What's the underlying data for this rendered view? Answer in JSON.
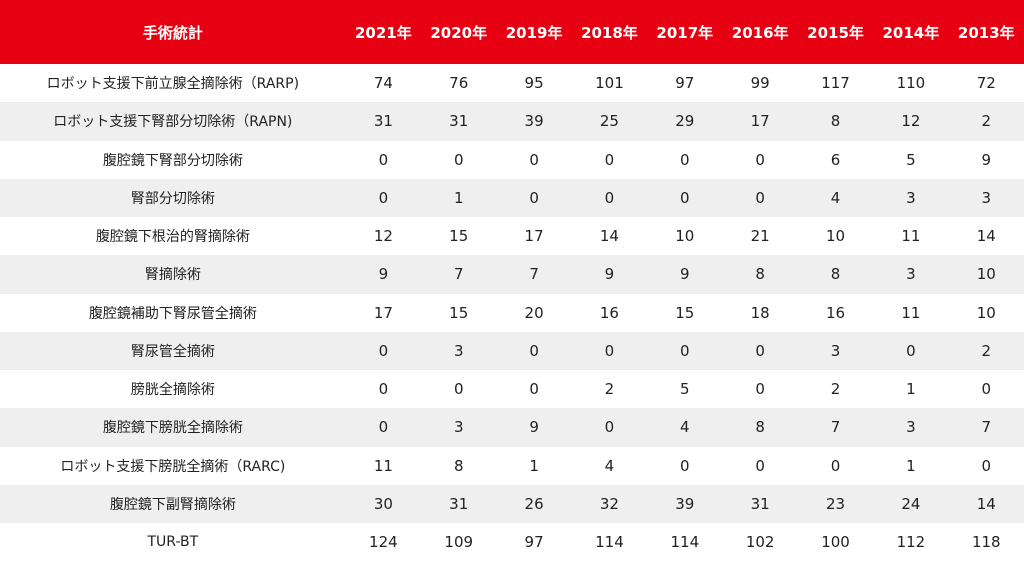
{
  "colors": {
    "header_bg": "#e60012",
    "header_text": "#ffffff",
    "stripe": "#efefef"
  },
  "table": {
    "header": [
      "手術統計",
      "2021年",
      "2020年",
      "2019年",
      "2018年",
      "2017年",
      "2016年",
      "2015年",
      "2014年",
      "2013年"
    ],
    "rows": [
      {
        "name": "ロボット支援下前立腺全摘除術（RARP)",
        "values": [
          "74",
          "76",
          "95",
          "101",
          "97",
          "99",
          "117",
          "110",
          "72"
        ]
      },
      {
        "name": "ロボット支援下腎部分切除術（RAPN)",
        "values": [
          "31",
          "31",
          "39",
          "25",
          "29",
          "17",
          "8",
          "12",
          "2"
        ]
      },
      {
        "name": "腹腔鏡下腎部分切除術",
        "values": [
          "0",
          "0",
          "0",
          "0",
          "0",
          "0",
          "6",
          "5",
          "9"
        ]
      },
      {
        "name": "腎部分切除術",
        "values": [
          "0",
          "1",
          "0",
          "0",
          "0",
          "0",
          "4",
          "3",
          "3"
        ]
      },
      {
        "name": "腹腔鏡下根治的腎摘除術",
        "values": [
          "12",
          "15",
          "17",
          "14",
          "10",
          "21",
          "10",
          "11",
          "14"
        ]
      },
      {
        "name": "腎摘除術",
        "values": [
          "9",
          "7",
          "7",
          "9",
          "9",
          "8",
          "8",
          "3",
          "10"
        ]
      },
      {
        "name": "腹腔鏡補助下腎尿管全摘術",
        "values": [
          "17",
          "15",
          "20",
          "16",
          "15",
          "18",
          "16",
          "11",
          "10"
        ]
      },
      {
        "name": "腎尿管全摘術",
        "values": [
          "0",
          "3",
          "0",
          "0",
          "0",
          "0",
          "3",
          "0",
          "2"
        ]
      },
      {
        "name": "膀胱全摘除術",
        "values": [
          "0",
          "0",
          "0",
          "2",
          "5",
          "0",
          "2",
          "1",
          "0"
        ]
      },
      {
        "name": "腹腔鏡下膀胱全摘除術",
        "values": [
          "0",
          "3",
          "9",
          "0",
          "4",
          "8",
          "7",
          "3",
          "7"
        ]
      },
      {
        "name": "ロボット支援下膀胱全摘術（RARC)",
        "values": [
          "11",
          "8",
          "1",
          "4",
          "0",
          "0",
          "0",
          "1",
          "0"
        ]
      },
      {
        "name": "腹腔鏡下副腎摘除術",
        "values": [
          "30",
          "31",
          "26",
          "32",
          "39",
          "31",
          "23",
          "24",
          "14"
        ]
      },
      {
        "name": "TUR-BT",
        "values": [
          "124",
          "109",
          "97",
          "114",
          "114",
          "102",
          "100",
          "112",
          "118"
        ]
      }
    ]
  }
}
